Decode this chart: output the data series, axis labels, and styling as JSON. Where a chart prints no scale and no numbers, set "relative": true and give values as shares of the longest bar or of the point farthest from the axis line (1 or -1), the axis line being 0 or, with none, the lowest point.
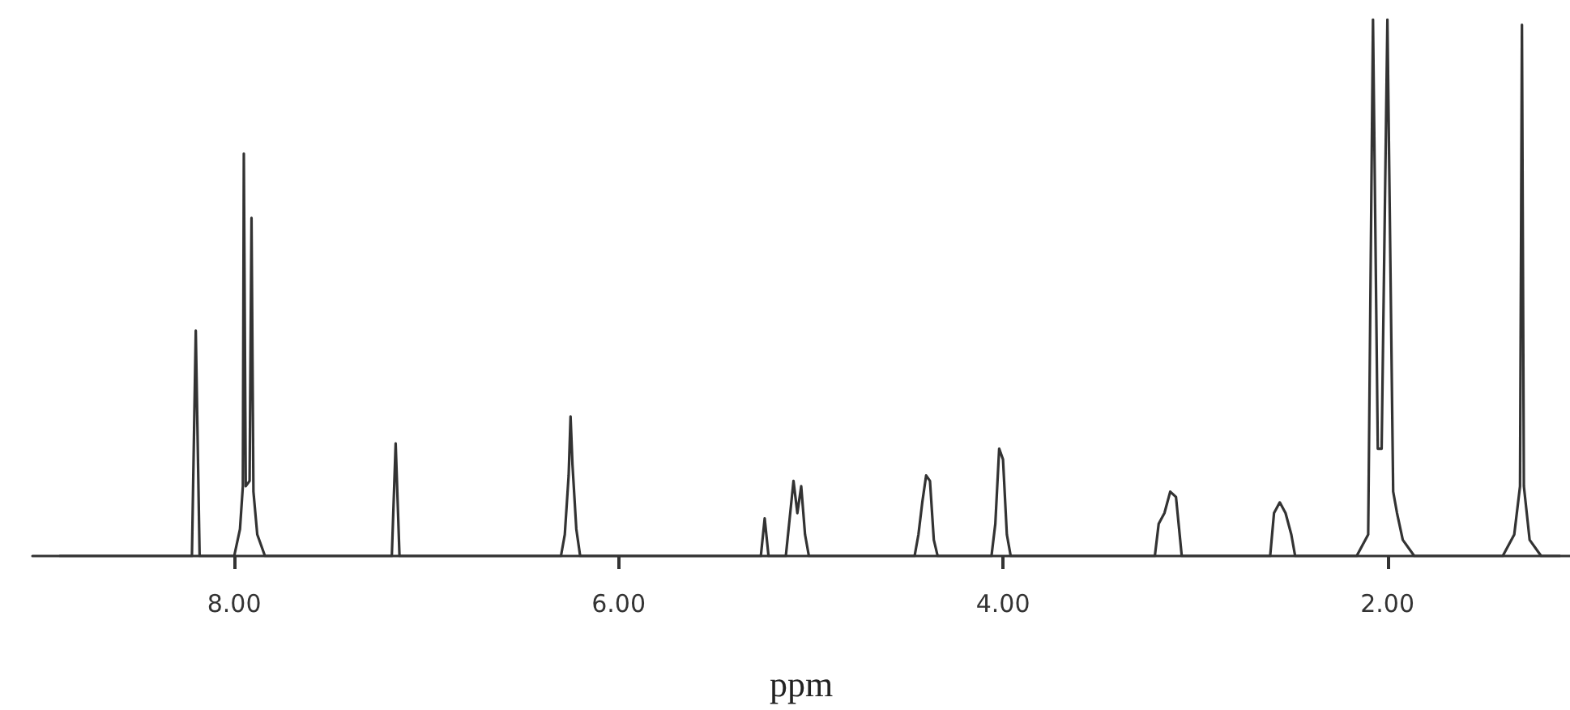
{
  "chart_data": {
    "type": "line",
    "xlabel": "ppm",
    "relative": true,
    "grid": false,
    "marker": "none",
    "line_style": "solid",
    "xlim": [
      9.05,
      1.05
    ],
    "xticks": [
      {
        "value": 8,
        "label": "8.00"
      },
      {
        "value": 6,
        "label": "6.00"
      },
      {
        "value": 4,
        "label": "4.00"
      },
      {
        "value": 2,
        "label": "2.00"
      }
    ],
    "series": [
      {
        "color": "#333333",
        "x": [
          8.91,
          8.22,
          8.2,
          8.18,
          8.0,
          7.97,
          7.955,
          7.95,
          7.94,
          7.92,
          7.91,
          7.9,
          7.88,
          7.84,
          7.18,
          7.16,
          7.14,
          6.3,
          6.28,
          6.26,
          6.25,
          6.24,
          6.22,
          6.2,
          5.26,
          5.24,
          5.22,
          5.13,
          5.11,
          5.09,
          5.07,
          5.05,
          5.03,
          5.01,
          4.46,
          4.44,
          4.42,
          4.4,
          4.38,
          4.36,
          4.34,
          4.06,
          4.04,
          4.02,
          4.0,
          3.98,
          3.96,
          3.21,
          3.19,
          3.16,
          3.13,
          3.1,
          3.07,
          2.61,
          2.59,
          2.56,
          2.53,
          2.5,
          2.48,
          2.16,
          2.1,
          2.075,
          2.05,
          2.03,
          2.0,
          1.97,
          1.95,
          1.92,
          1.86,
          1.4,
          1.34,
          1.31,
          1.3,
          1.29,
          1.26,
          1.2,
          1.1
        ],
        "values": [
          0,
          0,
          0.42,
          0,
          0,
          0.05,
          0.13,
          0.75,
          0.13,
          0.14,
          0.63,
          0.12,
          0.04,
          0,
          0,
          0.21,
          0,
          0,
          0.04,
          0.15,
          0.26,
          0.17,
          0.05,
          0,
          0,
          0.07,
          0,
          0,
          0.07,
          0.14,
          0.08,
          0.13,
          0.04,
          0,
          0,
          0.04,
          0.1,
          0.15,
          0.14,
          0.03,
          0,
          0,
          0.06,
          0.2,
          0.18,
          0.04,
          0,
          0,
          0.06,
          0.08,
          0.12,
          0.11,
          0,
          0,
          0.08,
          0.1,
          0.08,
          0.04,
          0,
          0,
          0.04,
          1.0,
          0.2,
          0.2,
          1.0,
          0.12,
          0.08,
          0.03,
          0,
          0,
          0.04,
          0.13,
          0.99,
          0.13,
          0.03,
          0,
          0
        ]
      }
    ]
  }
}
